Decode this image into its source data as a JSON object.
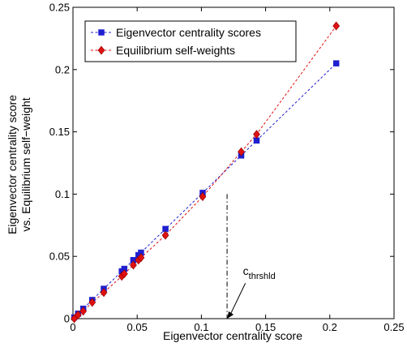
{
  "chart_data": {
    "type": "scatter",
    "title": "",
    "xlabel": "Eigenvector centrality score",
    "ylabel_lines": [
      "Eigenvector centrality score",
      "vs. Equilibrium self−weight"
    ],
    "xlim": [
      0,
      0.25
    ],
    "ylim": [
      0,
      0.25
    ],
    "x_ticks": [
      0,
      0.05,
      0.1,
      0.15,
      0.2,
      0.25
    ],
    "x_tick_labels": [
      "0",
      "0.05",
      "0.1",
      "0.15",
      "0.2",
      "0.25"
    ],
    "y_ticks": [
      0,
      0.05,
      0.1,
      0.15,
      0.2,
      0.25
    ],
    "y_tick_labels": [
      "0",
      "0.05",
      "0.1",
      "0.15",
      "0.2",
      "0.25"
    ],
    "grid": false,
    "legend_position": "top-left",
    "series": [
      {
        "name": "Eigenvector centrality scores",
        "marker": "square",
        "color": "#1f1fd0",
        "line_style": "dashed",
        "x": [
          0.001,
          0.004,
          0.008,
          0.015,
          0.024,
          0.038,
          0.04,
          0.047,
          0.051,
          0.053,
          0.072,
          0.101,
          0.131,
          0.143,
          0.205
        ],
        "y": [
          0.001,
          0.004,
          0.008,
          0.015,
          0.024,
          0.038,
          0.04,
          0.047,
          0.051,
          0.053,
          0.072,
          0.101,
          0.131,
          0.143,
          0.205
        ]
      },
      {
        "name": "Equilibrium self-weights",
        "marker": "diamond",
        "color": "#e01010",
        "line_style": "dashed",
        "x": [
          0.001,
          0.004,
          0.008,
          0.015,
          0.024,
          0.038,
          0.04,
          0.047,
          0.051,
          0.053,
          0.072,
          0.101,
          0.131,
          0.143,
          0.205
        ],
        "y": [
          0.0,
          0.003,
          0.006,
          0.013,
          0.021,
          0.034,
          0.036,
          0.043,
          0.047,
          0.049,
          0.067,
          0.098,
          0.134,
          0.148,
          0.235
        ]
      }
    ],
    "annotation": {
      "text_main": "c",
      "text_sub": "thrshld",
      "threshold_x": 0.12,
      "threshold_y": 0.1,
      "label_x": 0.133,
      "label_y": 0.035
    }
  }
}
